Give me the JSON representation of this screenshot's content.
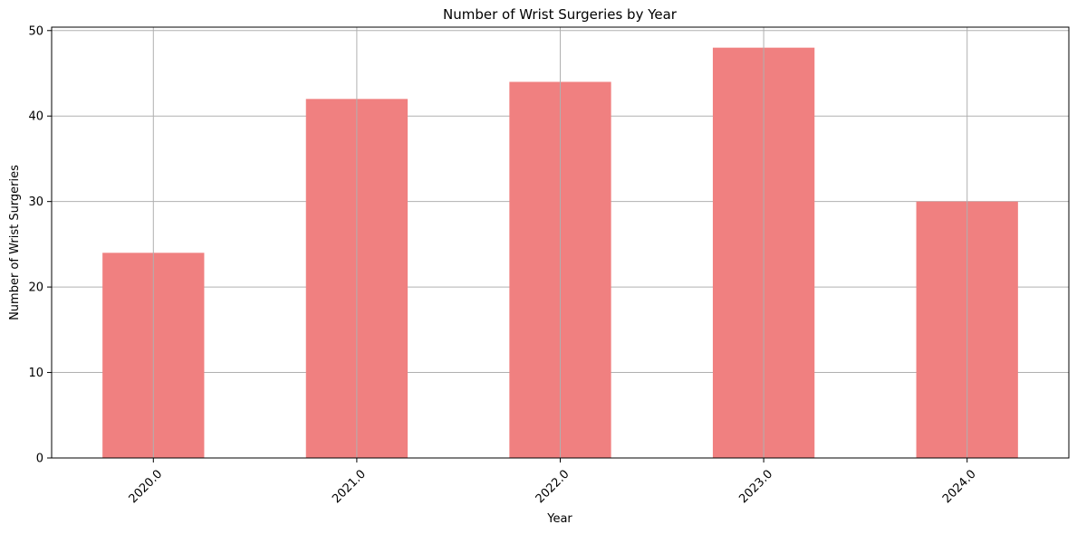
{
  "chart_data": {
    "type": "bar",
    "title": "Number of Wrist Surgeries by Year",
    "xlabel": "Year",
    "ylabel": "Number of Wrist Surgeries",
    "categories": [
      "2020.0",
      "2021.0",
      "2022.0",
      "2023.0",
      "2024.0"
    ],
    "values": [
      24,
      42,
      44,
      48,
      30
    ],
    "ylim": [
      0,
      50.4
    ],
    "yticks": [
      0,
      10,
      20,
      30,
      40,
      50
    ],
    "grid": true,
    "bar_color": "#f08080",
    "grid_color": "#b0b0b0",
    "xtick_rotation_deg": 45
  }
}
